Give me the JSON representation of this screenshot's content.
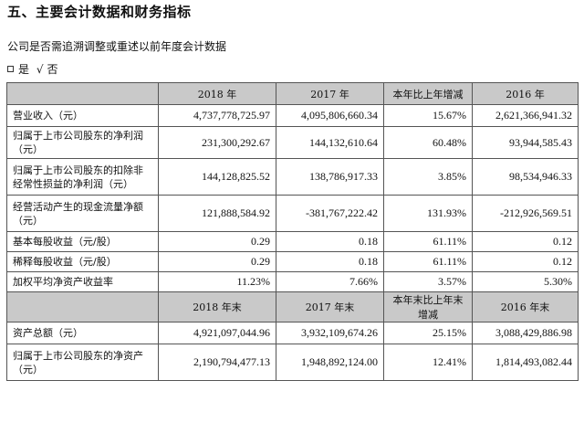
{
  "heading": "五、主要会计数据和财务指标",
  "question": "公司是否需追溯调整或重述以前年度会计数据",
  "answer": {
    "yes": "是",
    "check": "√",
    "no": "否"
  },
  "table": {
    "header1": [
      "",
      "2018 年",
      "2017 年",
      "本年比上年增减",
      "2016 年"
    ],
    "rows1": [
      {
        "label": "营业收入（元）",
        "values": [
          "4,737,778,725.97",
          "4,095,806,660.34",
          "15.67%",
          "2,621,366,941.32"
        ]
      },
      {
        "label": "归属于上市公司股东的净利润（元）",
        "values": [
          "231,300,292.67",
          "144,132,610.64",
          "60.48%",
          "93,944,585.43"
        ]
      },
      {
        "label": "归属于上市公司股东的扣除非经常性损益的净利润（元）",
        "values": [
          "144,128,825.52",
          "138,786,917.33",
          "3.85%",
          "98,534,946.33"
        ]
      },
      {
        "label": "经营活动产生的现金流量净额（元）",
        "values": [
          "121,888,584.92",
          "-381,767,222.42",
          "131.93%",
          "-212,926,569.51"
        ]
      },
      {
        "label": "基本每股收益（元/股）",
        "values": [
          "0.29",
          "0.18",
          "61.11%",
          "0.12"
        ]
      },
      {
        "label": "稀释每股收益（元/股）",
        "values": [
          "0.29",
          "0.18",
          "61.11%",
          "0.12"
        ]
      },
      {
        "label": "加权平均净资产收益率",
        "values": [
          "11.23%",
          "7.66%",
          "3.57%",
          "5.30%"
        ]
      }
    ],
    "header2": [
      "",
      "2018 年末",
      "2017 年末",
      "本年末比上年末增减",
      "2016 年末"
    ],
    "rows2": [
      {
        "label": "资产总额（元）",
        "values": [
          "4,921,097,044.96",
          "3,932,109,674.26",
          "25.15%",
          "3,088,429,886.98"
        ]
      },
      {
        "label": "归属于上市公司股东的净资产（元）",
        "values": [
          "2,190,794,477.13",
          "1,948,892,124.00",
          "12.41%",
          "1,814,493,082.44"
        ]
      }
    ]
  }
}
